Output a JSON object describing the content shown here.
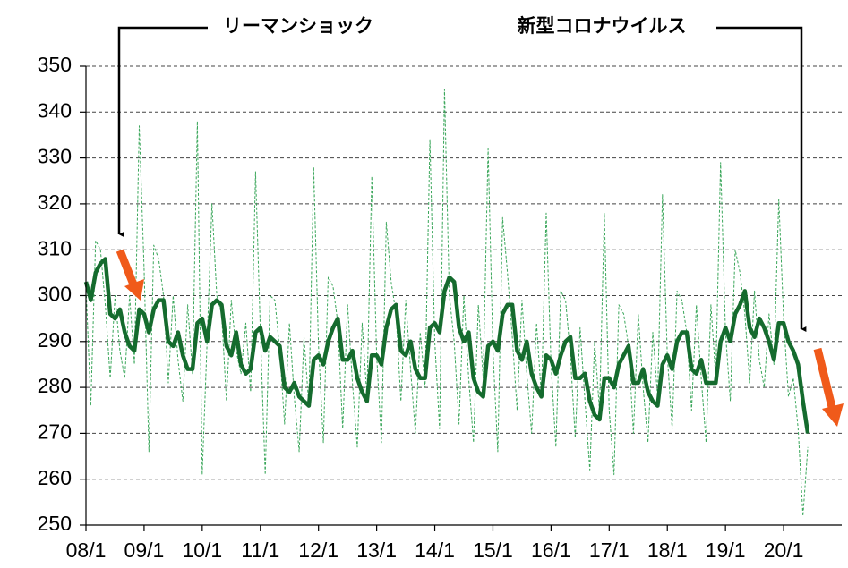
{
  "chart_data": {
    "type": "line",
    "annotations": [
      {
        "text": "リーマンショック"
      },
      {
        "text": "新型コロナウイルス"
      }
    ],
    "categories": [
      "08/1",
      null,
      null,
      null,
      null,
      null,
      null,
      null,
      null,
      null,
      null,
      null,
      "09/1",
      null,
      null,
      null,
      null,
      null,
      null,
      null,
      null,
      null,
      null,
      null,
      "10/1",
      null,
      null,
      null,
      null,
      null,
      null,
      null,
      null,
      null,
      null,
      null,
      "11/1",
      null,
      null,
      null,
      null,
      null,
      null,
      null,
      null,
      null,
      null,
      null,
      "12/1",
      null,
      null,
      null,
      null,
      null,
      null,
      null,
      null,
      null,
      null,
      null,
      "13/1",
      null,
      null,
      null,
      null,
      null,
      null,
      null,
      null,
      null,
      null,
      null,
      "14/1",
      null,
      null,
      null,
      null,
      null,
      null,
      null,
      null,
      null,
      null,
      null,
      "15/1",
      null,
      null,
      null,
      null,
      null,
      null,
      null,
      null,
      null,
      null,
      null,
      "16/1",
      null,
      null,
      null,
      null,
      null,
      null,
      null,
      null,
      null,
      null,
      null,
      "17/1",
      null,
      null,
      null,
      null,
      null,
      null,
      null,
      null,
      null,
      null,
      null,
      "18/1",
      null,
      null,
      null,
      null,
      null,
      null,
      null,
      null,
      null,
      null,
      null,
      "19/1",
      null,
      null,
      null,
      null,
      null,
      null,
      null,
      null,
      null,
      null,
      null,
      "20/1",
      null,
      null,
      null,
      null,
      null,
      null,
      null,
      null,
      null,
      null,
      null
    ],
    "series": [
      {
        "color": "#3aa65a",
        "style": "dashed",
        "width": 1,
        "values": [
          302,
          276,
          312,
          310,
          298,
          282,
          300,
          288,
          282,
          300,
          285,
          337,
          306,
          266,
          311,
          308,
          300,
          281,
          300,
          286,
          277,
          298,
          283,
          338,
          261,
          290,
          320,
          300,
          296,
          277,
          299,
          288,
          283,
          294,
          279,
          327,
          292,
          261,
          300,
          299,
          288,
          272,
          294,
          278,
          266,
          291,
          276,
          328,
          289,
          268,
          304,
          302,
          294,
          271,
          298,
          281,
          267,
          294,
          278,
          326,
          287,
          268,
          316,
          303,
          296,
          277,
          299,
          284,
          270,
          292,
          280,
          334,
          290,
          271,
          345,
          300,
          290,
          272,
          300,
          282,
          268,
          298,
          282,
          332,
          288,
          266,
          317,
          305,
          291,
          275,
          299,
          283,
          270,
          294,
          278,
          318,
          285,
          267,
          301,
          299,
          287,
          269,
          293,
          277,
          262,
          290,
          275,
          318,
          275,
          261,
          298,
          296,
          289,
          270,
          296,
          280,
          268,
          292,
          278,
          322,
          287,
          271,
          301,
          299,
          292,
          275,
          298,
          282,
          268,
          298,
          282,
          329,
          292,
          277,
          310,
          305,
          296,
          281,
          301,
          286,
          280,
          296,
          285,
          321,
          295,
          278,
          282,
          271,
          252,
          267,
          null,
          null,
          null,
          null,
          null,
          null
        ]
      },
      {
        "color": "#156b2e",
        "style": "solid",
        "width": 4.5,
        "values": [
          303,
          299,
          305,
          307,
          308,
          296,
          295,
          297,
          292,
          289,
          288,
          297,
          296,
          292,
          297,
          299,
          299,
          290,
          289,
          292,
          287,
          284,
          284,
          294,
          295,
          290,
          298,
          299,
          298,
          289,
          287,
          292,
          285,
          283,
          284,
          292,
          293,
          288,
          291,
          290,
          289,
          280,
          279,
          281,
          278,
          277,
          276,
          286,
          287,
          285,
          290,
          293,
          295,
          286,
          286,
          288,
          282,
          279,
          277,
          287,
          287,
          285,
          293,
          297,
          298,
          288,
          287,
          290,
          284,
          282,
          282,
          293,
          294,
          292,
          301,
          304,
          303,
          293,
          290,
          292,
          282,
          279,
          278,
          289,
          290,
          288,
          296,
          298,
          298,
          288,
          286,
          290,
          283,
          280,
          278,
          287,
          286,
          283,
          287,
          290,
          291,
          282,
          282,
          283,
          277,
          274,
          273,
          282,
          282,
          280,
          285,
          287,
          289,
          281,
          281,
          284,
          279,
          277,
          276,
          285,
          287,
          284,
          290,
          292,
          292,
          284,
          283,
          286,
          281,
          281,
          281,
          290,
          293,
          290,
          296,
          298,
          301,
          293,
          291,
          295,
          293,
          290,
          286,
          294,
          294,
          290,
          288,
          285,
          277,
          270,
          null,
          null,
          null,
          null,
          null,
          null
        ]
      }
    ],
    "ylim": [
      250,
      350
    ],
    "yticks": [
      250,
      260,
      270,
      280,
      290,
      300,
      310,
      320,
      330,
      340,
      350
    ],
    "grid": true
  }
}
